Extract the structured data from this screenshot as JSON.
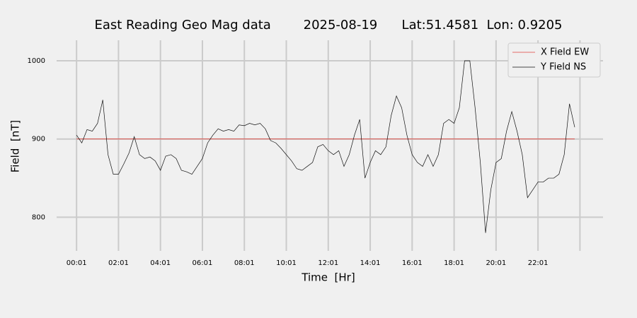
{
  "chart_data": {
    "type": "line",
    "title": "East Reading Geo Mag data        2025-08-19      Lat:51.4581  Lon: 0.9205",
    "x_label": "Time  [Hr]",
    "y_label": "Field  [nT]",
    "x": [
      0,
      0.25,
      0.5,
      0.75,
      1,
      1.25,
      1.5,
      1.75,
      2,
      2.25,
      2.5,
      2.75,
      3,
      3.25,
      3.5,
      3.75,
      4,
      4.25,
      4.5,
      4.75,
      5,
      5.25,
      5.5,
      5.75,
      6,
      6.25,
      6.5,
      6.75,
      7,
      7.25,
      7.5,
      7.75,
      8,
      8.25,
      8.5,
      8.75,
      9,
      9.25,
      9.5,
      9.75,
      10,
      10.25,
      10.5,
      10.75,
      11,
      11.25,
      11.5,
      11.75,
      12,
      12.25,
      12.5,
      12.75,
      13,
      13.25,
      13.5,
      13.75,
      14,
      14.25,
      14.5,
      14.75,
      15,
      15.25,
      15.5,
      15.75,
      16,
      16.25,
      16.5,
      16.75,
      17,
      17.25,
      17.5,
      17.75,
      18,
      18.25,
      18.5,
      18.75,
      19,
      19.25,
      19.5,
      19.75,
      20,
      20.25,
      20.5,
      20.75,
      21,
      21.25,
      21.5,
      21.75,
      22,
      22.25,
      22.5,
      22.75,
      23,
      23.25,
      23.5,
      23.75
    ],
    "series": [
      {
        "name": "X Field EW",
        "color": "#e0413a",
        "values": [
          900,
          900,
          900,
          900,
          900,
          900,
          900,
          900,
          900,
          900,
          900,
          900,
          900,
          900,
          900,
          900,
          900,
          900,
          900,
          900,
          900,
          900,
          900,
          900,
          900,
          900,
          900,
          900,
          900,
          900,
          900,
          900,
          900,
          900,
          900,
          900,
          900,
          900,
          900,
          900,
          900,
          900,
          900,
          900,
          900,
          900,
          900,
          900,
          900,
          900,
          900,
          900,
          900,
          900,
          900,
          900,
          900,
          900,
          900,
          900,
          900,
          900,
          900,
          900,
          900,
          900,
          900,
          900,
          900,
          900,
          900,
          900,
          900,
          900,
          900,
          900,
          900,
          900,
          900,
          900,
          900,
          900,
          900,
          900,
          900,
          900,
          900,
          900,
          900,
          900,
          900,
          900,
          900,
          900,
          900,
          900
        ]
      },
      {
        "name": "Y Field NS",
        "color": "#111111",
        "values": [
          905,
          895,
          912,
          910,
          920,
          950,
          880,
          855,
          855,
          868,
          882,
          903,
          880,
          875,
          877,
          872,
          860,
          878,
          880,
          875,
          860,
          858,
          855,
          865,
          875,
          895,
          905,
          913,
          910,
          912,
          910,
          918,
          917,
          920,
          918,
          920,
          913,
          898,
          895,
          888,
          880,
          872,
          862,
          860,
          865,
          870,
          890,
          893,
          885,
          880,
          885,
          865,
          880,
          905,
          925,
          850,
          870,
          885,
          880,
          890,
          930,
          955,
          940,
          905,
          880,
          870,
          865,
          880,
          865,
          880,
          920,
          925,
          920,
          940,
          1000,
          1000,
          940,
          870,
          780,
          835,
          870,
          875,
          910,
          935,
          910,
          880,
          825,
          835,
          845,
          845,
          850,
          850,
          855,
          880,
          945,
          915
        ]
      }
    ],
    "xlim": [
      -0.95,
      25.1
    ],
    "ylim": [
      757,
      1028
    ],
    "xticks": [
      {
        "value": 0,
        "label": "00:01"
      },
      {
        "value": 2,
        "label": "02:01"
      },
      {
        "value": 4,
        "label": "04:01"
      },
      {
        "value": 6,
        "label": "06:01"
      },
      {
        "value": 8,
        "label": "08:01"
      },
      {
        "value": 10,
        "label": "10:01"
      },
      {
        "value": 12,
        "label": "12:01"
      },
      {
        "value": 14,
        "label": "14:01"
      },
      {
        "value": 16,
        "label": "16:01"
      },
      {
        "value": 18,
        "label": "18:01"
      },
      {
        "value": 20,
        "label": "20:01"
      },
      {
        "value": 22,
        "label": "22:01"
      },
      {
        "value": 24,
        "label": null
      }
    ],
    "yticks": [
      800,
      900,
      1000
    ],
    "grid": true,
    "legend": "upper right"
  }
}
